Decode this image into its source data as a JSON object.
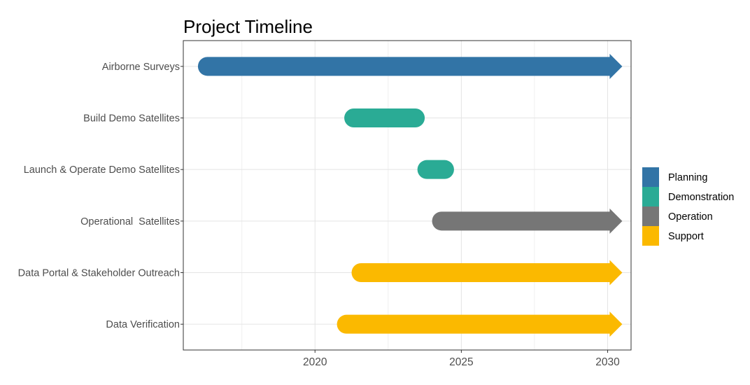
{
  "chart_data": {
    "type": "gantt",
    "title": "Project Timeline",
    "xlabel": "",
    "ylabel": "",
    "xlim": [
      2015.5,
      2030.8
    ],
    "x_ticks": [
      2020,
      2025,
      2030
    ],
    "x_tick_labels": [
      "2020",
      "2025",
      "2030"
    ],
    "minor_ticks": [
      2017.5,
      2022.5,
      2027.5
    ],
    "grid": true,
    "legend_position": "right",
    "legend": [
      {
        "name": "Planning",
        "color": "#3274a6"
      },
      {
        "name": "Demonstration",
        "color": "#2aab95"
      },
      {
        "name": "Operation",
        "color": "#767676"
      },
      {
        "name": "Support",
        "color": "#fbb900"
      }
    ],
    "tasks": [
      {
        "label": "Airborne Surveys",
        "start": 2016,
        "end": 2030.5,
        "category": "Planning",
        "ongoing": true
      },
      {
        "label": "Build Demo Satellites",
        "start": 2021,
        "end": 2023.75,
        "category": "Demonstration",
        "ongoing": false
      },
      {
        "label": "Launch & Operate Demo Satellites",
        "start": 2023.5,
        "end": 2024.75,
        "category": "Demonstration",
        "ongoing": false
      },
      {
        "label": "Operational  Satellites",
        "start": 2024,
        "end": 2030.5,
        "category": "Operation",
        "ongoing": true
      },
      {
        "label": "Data Portal & Stakeholder Outreach",
        "start": 2021.25,
        "end": 2030.5,
        "category": "Support",
        "ongoing": true
      },
      {
        "label": "Data Verification",
        "start": 2020.75,
        "end": 2030.5,
        "category": "Support",
        "ongoing": true
      }
    ]
  }
}
